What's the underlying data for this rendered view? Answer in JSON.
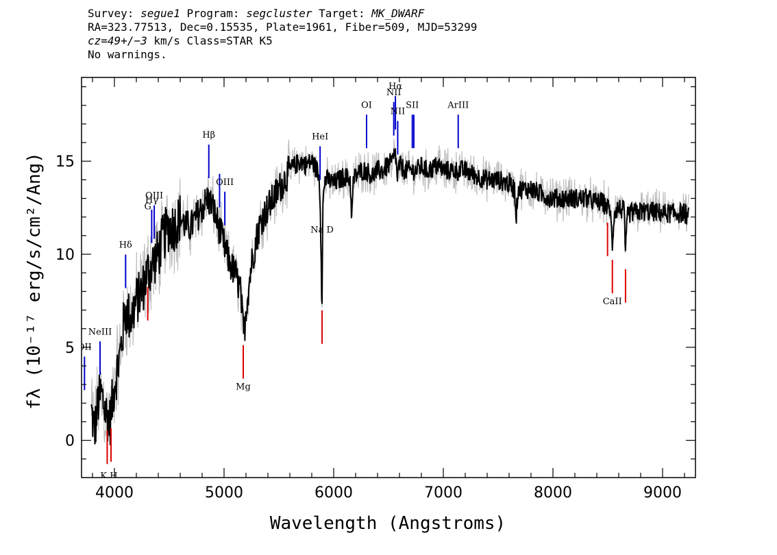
{
  "header": {
    "line1": {
      "a": "Survey: ",
      "survey": "segue1",
      "b": " Program: ",
      "program": "segcluster",
      "c": " Target: ",
      "target": "MK_DWARF"
    },
    "line2": "RA=323.77513, Dec=0.15535, Plate=1961, Fiber=509, MJD=53299",
    "line3": {
      "cz": "cz=49+/−3",
      "rest": " km/s Class=STAR K5"
    },
    "line4": "No warnings."
  },
  "colors": {
    "flux": "#000000",
    "error_band": "#bdbdbd",
    "emission": "#0000cc",
    "absorption": "#dd0000"
  },
  "chart_data": {
    "type": "line",
    "title": "",
    "xlabel": "Wavelength (Angstroms)",
    "ylabel": "fλ (10⁻¹⁷ erg/s/cm²/Ang)",
    "xlim": [
      3700,
      9300
    ],
    "ylim": [
      -2,
      19.5
    ],
    "x_ticks": [
      4000,
      5000,
      6000,
      7000,
      8000,
      9000
    ],
    "y_ticks": [
      0,
      5,
      10,
      15
    ],
    "grid": false,
    "series": [
      {
        "x": [
          3790,
          3820,
          3850,
          3880,
          3920,
          3960,
          4000,
          4050,
          4100,
          4150,
          4200,
          4250,
          4300,
          4350,
          4400,
          4450,
          4500,
          4550,
          4600,
          4650,
          4700,
          4750,
          4800,
          4850,
          4900,
          4950,
          5000,
          5050,
          5100,
          5150,
          5180,
          5200,
          5250,
          5300,
          5350,
          5400,
          5450,
          5500,
          5550,
          5600,
          5650,
          5700,
          5750,
          5800,
          5850,
          5870,
          5880,
          5893,
          5900,
          5920,
          5950,
          6000,
          6050,
          6100,
          6150,
          6165,
          6180,
          6200,
          6250,
          6300,
          6350,
          6400,
          6450,
          6500,
          6540,
          6563,
          6580,
          6600,
          6650,
          6700,
          6750,
          6800,
          6850,
          6900,
          6950,
          7000,
          7100,
          7200,
          7300,
          7400,
          7500,
          7600,
          7650,
          7665,
          7680,
          7700,
          7800,
          7900,
          8000,
          8100,
          8200,
          8300,
          8400,
          8450,
          8498,
          8520,
          8542,
          8560,
          8600,
          8650,
          8662,
          8680,
          8700,
          8800,
          8900,
          9000,
          9100,
          9200,
          9240
        ],
        "y": [
          1.5,
          0.5,
          2.0,
          2.5,
          1.5,
          1.0,
          3.0,
          4.5,
          7.0,
          6.5,
          7.5,
          8.0,
          9.0,
          9.5,
          10.0,
          11.0,
          11.5,
          11.5,
          12.0,
          11.5,
          11.5,
          12.0,
          12.5,
          13.0,
          12.5,
          11.5,
          10.5,
          9.5,
          9.0,
          8.0,
          5.5,
          7.0,
          9.5,
          11.0,
          12.0,
          12.5,
          13.0,
          13.5,
          14.0,
          14.5,
          14.8,
          15.0,
          14.8,
          15.0,
          14.5,
          14.0,
          12.0,
          7.0,
          12.5,
          14.0,
          14.0,
          13.8,
          14.0,
          14.2,
          14.0,
          12.0,
          14.0,
          14.2,
          14.5,
          14.5,
          14.2,
          14.5,
          14.5,
          14.8,
          15.0,
          15.5,
          14.0,
          14.8,
          14.5,
          14.5,
          14.5,
          14.7,
          14.5,
          14.6,
          14.8,
          14.5,
          14.5,
          14.5,
          14.2,
          14.0,
          14.0,
          13.8,
          13.5,
          12.0,
          13.5,
          13.5,
          13.5,
          13.2,
          13.0,
          13.0,
          13.0,
          13.0,
          12.8,
          12.8,
          12.5,
          12.5,
          10.5,
          12.3,
          12.5,
          12.3,
          10.0,
          12.0,
          12.2,
          12.3,
          12.3,
          12.2,
          12.2,
          12.2,
          12.0
        ]
      }
    ],
    "lines": [
      {
        "name": "OII",
        "wave": 3727,
        "kind": "emission"
      },
      {
        "name": "NeIII",
        "wave": 3869,
        "kind": "emission"
      },
      {
        "name": "Hδ",
        "wave": 4102,
        "kind": "emission"
      },
      {
        "name": "Hγ",
        "wave": 4340,
        "kind": "emission"
      },
      {
        "name": "OIII",
        "wave": 4363,
        "kind": "emission"
      },
      {
        "name": "Hβ",
        "wave": 4861,
        "kind": "emission"
      },
      {
        "name": "OIII",
        "wave": 4959,
        "kind": "emission"
      },
      {
        "name": "OIII",
        "wave": 5007,
        "kind": "emission"
      },
      {
        "name": "HeI",
        "wave": 5876,
        "kind": "emission"
      },
      {
        "name": "OI",
        "wave": 6300,
        "kind": "emission"
      },
      {
        "name": "NII",
        "wave": 6548,
        "kind": "emission"
      },
      {
        "name": "Hα",
        "wave": 6563,
        "kind": "emission"
      },
      {
        "name": "NII",
        "wave": 6584,
        "kind": "emission"
      },
      {
        "name": "SII",
        "wave": 6717,
        "kind": "emission"
      },
      {
        "name": "SII",
        "wave": 6731,
        "kind": "emission"
      },
      {
        "name": "ArIII",
        "wave": 7136,
        "kind": "emission"
      },
      {
        "name": "K",
        "wave": 3934,
        "kind": "absorption"
      },
      {
        "name": "H",
        "wave": 3969,
        "kind": "absorption"
      },
      {
        "name": "G",
        "wave": 4304,
        "kind": "absorption"
      },
      {
        "name": "Mg",
        "wave": 5175,
        "kind": "absorption"
      },
      {
        "name": "Na D",
        "wave": 5894,
        "kind": "absorption"
      },
      {
        "name": "CaII",
        "wave": 8498,
        "kind": "absorption"
      },
      {
        "name": "CaII",
        "wave": 8542,
        "kind": "absorption"
      },
      {
        "name": "CaII",
        "wave": 8662,
        "kind": "absorption"
      }
    ],
    "line_labels": [
      {
        "text": "OII",
        "wave": 3727
      },
      {
        "text": "NeIII",
        "wave": 3869
      },
      {
        "text": "Hδ",
        "wave": 4102
      },
      {
        "text": "Hγ",
        "wave": 4340
      },
      {
        "text": "OIII",
        "wave": 4363
      },
      {
        "text": "Hβ",
        "wave": 4861
      },
      {
        "text": "OIII",
        "wave": 5007
      },
      {
        "text": "HeI",
        "wave": 5876
      },
      {
        "text": "OI",
        "wave": 6300
      },
      {
        "text": "NII",
        "wave": 6548
      },
      {
        "text": "Hα",
        "wave": 6563
      },
      {
        "text": "NII",
        "wave": 6584
      },
      {
        "text": "SII",
        "wave": 6717
      },
      {
        "text": "ArIII",
        "wave": 7136
      },
      {
        "text": "K H",
        "wave": 3950
      },
      {
        "text": "G",
        "wave": 4304
      },
      {
        "text": "Mg",
        "wave": 5175
      },
      {
        "text": "Na D",
        "wave": 5894
      },
      {
        "text": "CaII",
        "wave": 8542
      }
    ]
  }
}
